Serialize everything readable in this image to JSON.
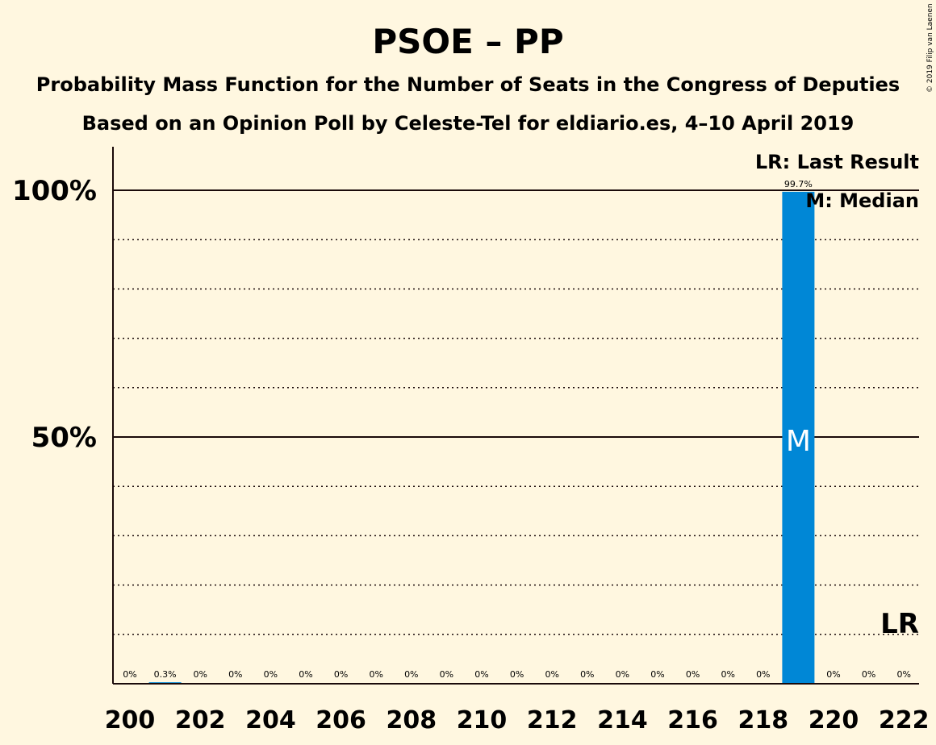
{
  "chart_data": {
    "type": "bar",
    "title": "PSOE – PP",
    "subtitle": "Probability Mass Function for the Number of Seats in the Congress of Deputies",
    "subtitle2": "Based on an Opinion Poll by Celeste-Tel for eldiario.es, 4–10 April 2019",
    "copyright": "© 2019 Filip van Laenen",
    "x": [
      200,
      201,
      202,
      203,
      204,
      205,
      206,
      207,
      208,
      209,
      210,
      211,
      212,
      213,
      214,
      215,
      216,
      217,
      218,
      219,
      220,
      221,
      222
    ],
    "values": [
      0,
      0.3,
      0,
      0,
      0,
      0,
      0,
      0,
      0,
      0,
      0,
      0,
      0,
      0,
      0,
      0,
      0,
      0,
      0,
      99.7,
      0,
      0,
      0
    ],
    "data_labels": [
      "0%",
      "0.3%",
      "0%",
      "0%",
      "0%",
      "0%",
      "0%",
      "0%",
      "0%",
      "0%",
      "0%",
      "0%",
      "0%",
      "0%",
      "0%",
      "0%",
      "0%",
      "0%",
      "0%",
      "99.7%",
      "0%",
      "0%",
      "0%"
    ],
    "xticks": [
      "200",
      "202",
      "204",
      "206",
      "208",
      "210",
      "212",
      "214",
      "216",
      "218",
      "220",
      "222"
    ],
    "yticks": [
      {
        "value": 50,
        "label": "50%"
      },
      {
        "value": 100,
        "label": "100%"
      }
    ],
    "ylim": [
      0,
      110
    ],
    "grid": "dotted every 10%",
    "median_seats": 219,
    "median_marker": "M",
    "last_result_seats": 222,
    "last_result_marker": "LR",
    "legend": [
      "LR: Last Result",
      "M: Median"
    ],
    "legend_position": "top-right",
    "bar_color": "#0087D6"
  }
}
